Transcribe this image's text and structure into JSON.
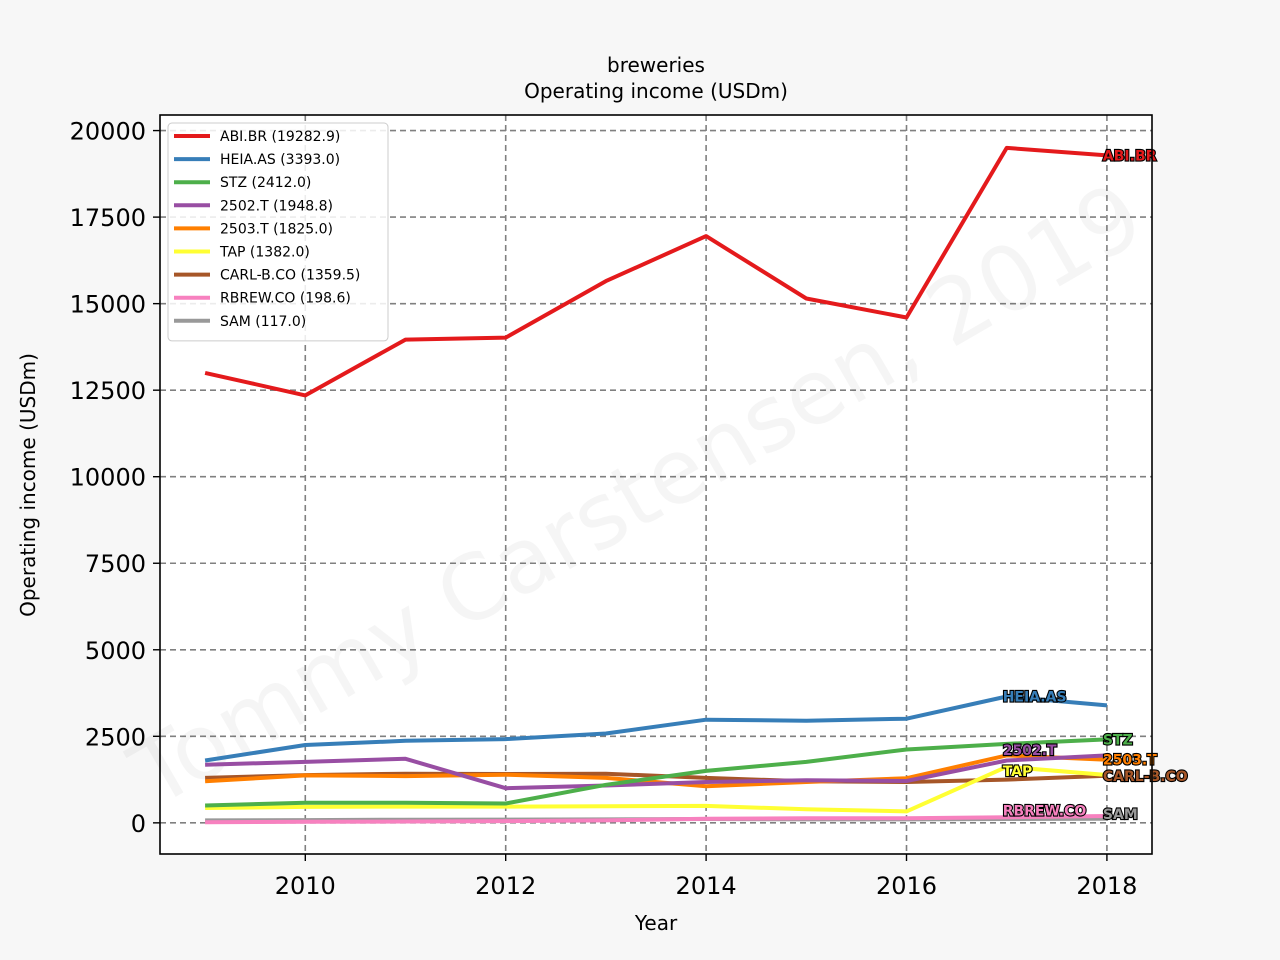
{
  "chart_data": {
    "type": "line",
    "title": "breweries",
    "subtitle": "Operating income (USDm)",
    "xlabel": "Year",
    "ylabel": "Operating income (USDm)",
    "xlim": [
      2008.55,
      2018.45
    ],
    "ylim": [
      -900,
      20450
    ],
    "x_ticks": [
      2010,
      2012,
      2014,
      2016,
      2018
    ],
    "y_ticks": [
      0,
      2500,
      5000,
      7500,
      10000,
      12500,
      15000,
      17500,
      20000
    ],
    "grid": true,
    "legend_position": "top-left",
    "x": [
      2009,
      2010,
      2011,
      2012,
      2013,
      2014,
      2015,
      2016,
      2017,
      2018
    ],
    "series": [
      {
        "name": "ABI.BR",
        "legend": "ABI.BR (19282.9)",
        "color": "#e41a1c",
        "values": [
          13000,
          12350,
          13960,
          14020,
          15650,
          16950,
          15150,
          14600,
          19500,
          19282.9
        ]
      },
      {
        "name": "HEIA.AS",
        "legend": "HEIA.AS (3393.0)",
        "color": "#377eb8",
        "values": [
          1800,
          2250,
          2370,
          2420,
          2580,
          2980,
          2950,
          3010,
          3650,
          3393.0
        ]
      },
      {
        "name": "STZ",
        "legend": "STZ (2412.0)",
        "color": "#4daf4a",
        "values": [
          500,
          580,
          580,
          560,
          1100,
          1500,
          1760,
          2120,
          2280,
          2412.0
        ]
      },
      {
        "name": "2502.T",
        "legend": "2502.T (1948.8)",
        "color": "#984ea3",
        "values": [
          1680,
          1760,
          1850,
          1000,
          1080,
          1180,
          1230,
          1210,
          1800,
          1948.8
        ]
      },
      {
        "name": "2503.T",
        "legend": "2503.T (1825.0)",
        "color": "#ff7f00",
        "values": [
          1200,
          1370,
          1350,
          1390,
          1300,
          1060,
          1180,
          1290,
          1950,
          1825.0
        ]
      },
      {
        "name": "TAP",
        "legend": "TAP (1382.0)",
        "color": "#ffff33",
        "values": [
          430,
          460,
          470,
          470,
          480,
          490,
          390,
          330,
          1620,
          1382.0
        ]
      },
      {
        "name": "CARL-B.CO",
        "legend": "CARL-B.CO (1359.5)",
        "color": "#a65628",
        "values": [
          1300,
          1380,
          1420,
          1410,
          1420,
          1300,
          1200,
          1180,
          1250,
          1359.5
        ]
      },
      {
        "name": "RBREW.CO",
        "legend": "RBREW.CO (198.6)",
        "color": "#f781bf",
        "values": [
          20,
          30,
          40,
          50,
          70,
          120,
          130,
          130,
          160,
          198.6
        ]
      },
      {
        "name": "SAM",
        "legend": "SAM (117.0)",
        "color": "#999999",
        "values": [
          70,
          80,
          90,
          95,
          100,
          110,
          100,
          100,
          110,
          117.0
        ]
      }
    ],
    "end_labels": [
      {
        "series": "ABI.BR",
        "text": "ABI.BR",
        "x": 2018,
        "y": 19282.9
      },
      {
        "series": "HEIA.AS",
        "text": "HEIA.AS",
        "x": 2017,
        "y": 3650
      },
      {
        "series": "STZ",
        "text": "STZ",
        "x": 2018,
        "y": 2412.0
      },
      {
        "series": "2502.T",
        "text": "2502.T",
        "x": 2017,
        "y": 2100
      },
      {
        "series": "2503.T",
        "text": "2503.T",
        "x": 2018,
        "y": 1825.0
      },
      {
        "series": "TAP",
        "text": "TAP",
        "x": 2017,
        "y": 1500
      },
      {
        "series": "CARL-B.CO",
        "text": "CARL-B.CO",
        "x": 2018,
        "y": 1359.5
      },
      {
        "series": "RBREW.CO",
        "text": "RBREW.CO",
        "x": 2017,
        "y": 350
      },
      {
        "series": "SAM",
        "text": "SAM",
        "x": 2018,
        "y": 260
      }
    ],
    "watermark": "Tommy Carstensen, 2019"
  }
}
